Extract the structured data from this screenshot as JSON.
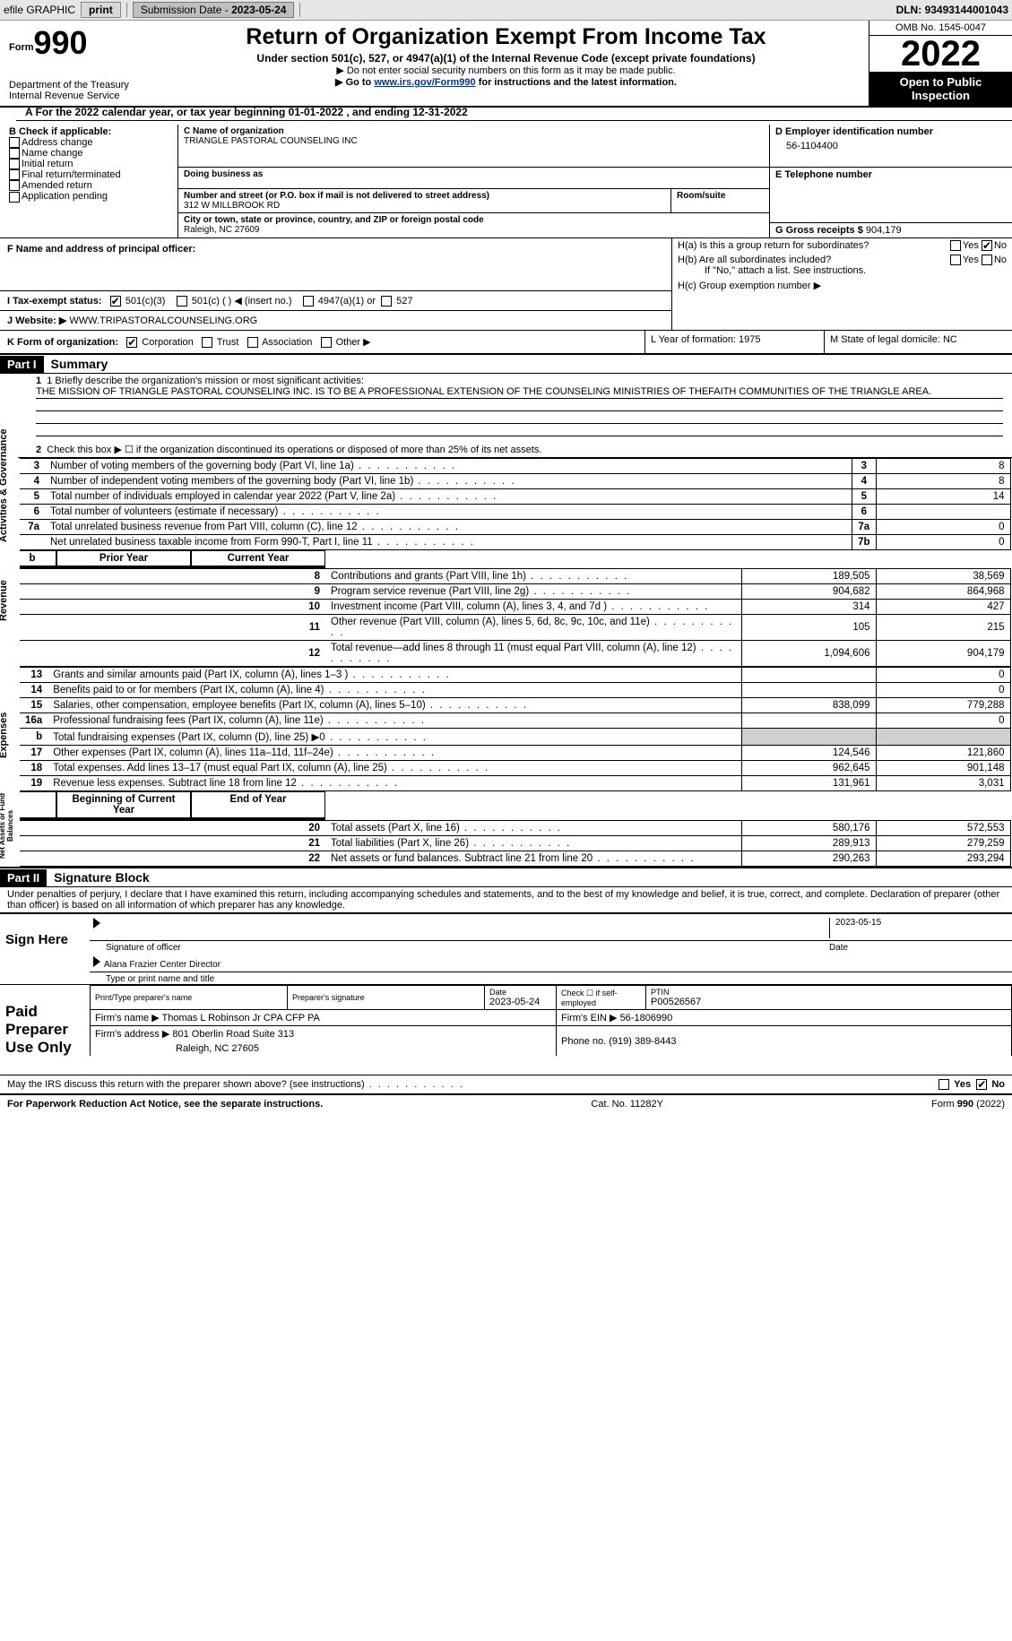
{
  "toolbar": {
    "efile": "efile GRAPHIC",
    "print": "print",
    "submission_label": "Submission Date - ",
    "submission_date": "2023-05-24",
    "dln_label": "DLN: ",
    "dln": "93493144001043"
  },
  "header": {
    "form_prefix": "Form",
    "form_number": "990",
    "dept": "Department of the Treasury",
    "irs": "Internal Revenue Service",
    "title": "Return of Organization Exempt From Income Tax",
    "sub1": "Under section 501(c), 527, or 4947(a)(1) of the Internal Revenue Code (except private foundations)",
    "sub2": "▶ Do not enter social security numbers on this form as it may be made public.",
    "sub3_pre": "▶ Go to ",
    "sub3_link": "www.irs.gov/Form990",
    "sub3_post": " for instructions and the latest information.",
    "omb": "OMB No. 1545-0047",
    "year": "2022",
    "inspection": "Open to Public Inspection"
  },
  "rowA": {
    "text": "A For the 2022 calendar year, or tax year beginning 01-01-2022   , and ending 12-31-2022"
  },
  "colB": {
    "label": "B Check if applicable:",
    "opts": [
      "Address change",
      "Name change",
      "Initial return",
      "Final return/terminated",
      "Amended return",
      "Application pending"
    ]
  },
  "colC": {
    "name_label": "C Name of organization",
    "name": "TRIANGLE PASTORAL COUNSELING INC",
    "dba_label": "Doing business as",
    "addr_label": "Number and street (or P.O. box if mail is not delivered to street address)",
    "room_label": "Room/suite",
    "addr": "312 W MILLBROOK RD",
    "city_label": "City or town, state or province, country, and ZIP or foreign postal code",
    "city": "Raleigh, NC  27609"
  },
  "colDE": {
    "d_label": "D Employer identification number",
    "d_val": "56-1104400",
    "e_label": "E Telephone number",
    "g_label": "G Gross receipts $ ",
    "g_val": "904,179"
  },
  "rowF": {
    "label": "F Name and address of principal officer:"
  },
  "rowH": {
    "a_label": "H(a)  Is this a group return for subordinates?",
    "b_label": "H(b)  Are all subordinates included?",
    "b_note": "If \"No,\" attach a list. See instructions.",
    "c_label": "H(c)  Group exemption number ▶",
    "yes": "Yes",
    "no": "No"
  },
  "rowI": {
    "label": "I   Tax-exempt status:",
    "o1": "501(c)(3)",
    "o2": "501(c) (  ) ◀ (insert no.)",
    "o3": "4947(a)(1) or",
    "o4": "527"
  },
  "rowJ": {
    "label": "J   Website: ▶  ",
    "val": "WWW.TRIPASTORALCOUNSELING.ORG"
  },
  "rowK": {
    "label": "K Form of organization:",
    "o1": "Corporation",
    "o2": "Trust",
    "o3": "Association",
    "o4": "Other ▶"
  },
  "rowL": {
    "text": "L Year of formation: 1975"
  },
  "rowM": {
    "text": "M State of legal domicile: NC"
  },
  "part1": {
    "hdr": "Part I",
    "title": "Summary",
    "line1_label": "1  Briefly describe the organization's mission or most significant activities:",
    "line1_text": "THE MISSION OF TRIANGLE PASTORAL COUNSELING INC. IS TO BE A PROFESSIONAL EXTENSION OF THE COUNSELING MINISTRIES OF THEFAITH COMMUNITIES OF THE TRIANGLE AREA.",
    "line2": "Check this box ▶ ☐ if the organization discontinued its operations or disposed of more than 25% of its net assets.",
    "sidetabs": {
      "ag": "Activities & Governance",
      "rev": "Revenue",
      "exp": "Expenses",
      "na": "Net Assets or Fund Balances"
    }
  },
  "summary_rows": [
    {
      "n": "3",
      "desc": "Number of voting members of the governing body (Part VI, line 1a)",
      "col": "3",
      "val": "8"
    },
    {
      "n": "4",
      "desc": "Number of independent voting members of the governing body (Part VI, line 1b)",
      "col": "4",
      "val": "8"
    },
    {
      "n": "5",
      "desc": "Total number of individuals employed in calendar year 2022 (Part V, line 2a)",
      "col": "5",
      "val": "14"
    },
    {
      "n": "6",
      "desc": "Total number of volunteers (estimate if necessary)",
      "col": "6",
      "val": ""
    },
    {
      "n": "7a",
      "desc": "Total unrelated business revenue from Part VIII, column (C), line 12",
      "col": "7a",
      "val": "0"
    },
    {
      "n": "",
      "desc": "Net unrelated business taxable income from Form 990-T, Part I, line 11",
      "col": "7b",
      "val": "0"
    }
  ],
  "revexp_hdr": {
    "b": "b",
    "prior": "Prior Year",
    "current": "Current Year"
  },
  "rev_rows": [
    {
      "n": "8",
      "desc": "Contributions and grants (Part VIII, line 1h)",
      "p": "189,505",
      "c": "38,569"
    },
    {
      "n": "9",
      "desc": "Program service revenue (Part VIII, line 2g)",
      "p": "904,682",
      "c": "864,968"
    },
    {
      "n": "10",
      "desc": "Investment income (Part VIII, column (A), lines 3, 4, and 7d )",
      "p": "314",
      "c": "427"
    },
    {
      "n": "11",
      "desc": "Other revenue (Part VIII, column (A), lines 5, 6d, 8c, 9c, 10c, and 11e)",
      "p": "105",
      "c": "215"
    },
    {
      "n": "12",
      "desc": "Total revenue—add lines 8 through 11 (must equal Part VIII, column (A), line 12)",
      "p": "1,094,606",
      "c": "904,179"
    }
  ],
  "exp_rows": [
    {
      "n": "13",
      "desc": "Grants and similar amounts paid (Part IX, column (A), lines 1–3 )",
      "p": "",
      "c": "0"
    },
    {
      "n": "14",
      "desc": "Benefits paid to or for members (Part IX, column (A), line 4)",
      "p": "",
      "c": "0"
    },
    {
      "n": "15",
      "desc": "Salaries, other compensation, employee benefits (Part IX, column (A), lines 5–10)",
      "p": "838,099",
      "c": "779,288"
    },
    {
      "n": "16a",
      "desc": "Professional fundraising fees (Part IX, column (A), line 11e)",
      "p": "",
      "c": "0"
    },
    {
      "n": "b",
      "desc": "Total fundraising expenses (Part IX, column (D), line 25) ▶0",
      "p": "grey",
      "c": "grey"
    },
    {
      "n": "17",
      "desc": "Other expenses (Part IX, column (A), lines 11a–11d, 11f–24e)",
      "p": "124,546",
      "c": "121,860"
    },
    {
      "n": "18",
      "desc": "Total expenses. Add lines 13–17 (must equal Part IX, column (A), line 25)",
      "p": "962,645",
      "c": "901,148"
    },
    {
      "n": "19",
      "desc": "Revenue less expenses. Subtract line 18 from line 12",
      "p": "131,961",
      "c": "3,031"
    }
  ],
  "na_hdr": {
    "begin": "Beginning of Current Year",
    "end": "End of Year"
  },
  "na_rows": [
    {
      "n": "20",
      "desc": "Total assets (Part X, line 16)",
      "p": "580,176",
      "c": "572,553"
    },
    {
      "n": "21",
      "desc": "Total liabilities (Part X, line 26)",
      "p": "289,913",
      "c": "279,259"
    },
    {
      "n": "22",
      "desc": "Net assets or fund balances. Subtract line 21 from line 20",
      "p": "290,263",
      "c": "293,294"
    }
  ],
  "part2": {
    "hdr": "Part II",
    "title": "Signature Block",
    "perjury": "Under penalties of perjury, I declare that I have examined this return, including accompanying schedules and statements, and to the best of my knowledge and belief, it is true, correct, and complete. Declaration of preparer (other than officer) is based on all information of which preparer has any knowledge."
  },
  "sign": {
    "here": "Sign Here",
    "sig_officer": "Signature of officer",
    "date": "Date",
    "date_val": "2023-05-15",
    "name": "Alana Frazier  Center Director",
    "name_label": "Type or print name and title"
  },
  "prep": {
    "label": "Paid Preparer Use Only",
    "c1": "Print/Type preparer's name",
    "c2": "Preparer's signature",
    "c3": "Date",
    "c3v": "2023-05-24",
    "c4": "Check ☐ if self-employed",
    "c5": "PTIN",
    "c5v": "P00526567",
    "firm_name_l": "Firm's name    ▶ ",
    "firm_name": "Thomas L Robinson Jr CPA CFP PA",
    "firm_ein_l": "Firm's EIN ▶ ",
    "firm_ein": "56-1806990",
    "firm_addr_l": "Firm's address ▶ ",
    "firm_addr": "801 Oberlin Road Suite 313",
    "firm_city": "Raleigh, NC  27605",
    "phone_l": "Phone no. ",
    "phone": "(919) 389-8443"
  },
  "may_discuss": "May the IRS discuss this return with the preparer shown above? (see instructions)",
  "footer": {
    "left": "For Paperwork Reduction Act Notice, see the separate instructions.",
    "mid": "Cat. No. 11282Y",
    "right": "Form 990 (2022)"
  }
}
